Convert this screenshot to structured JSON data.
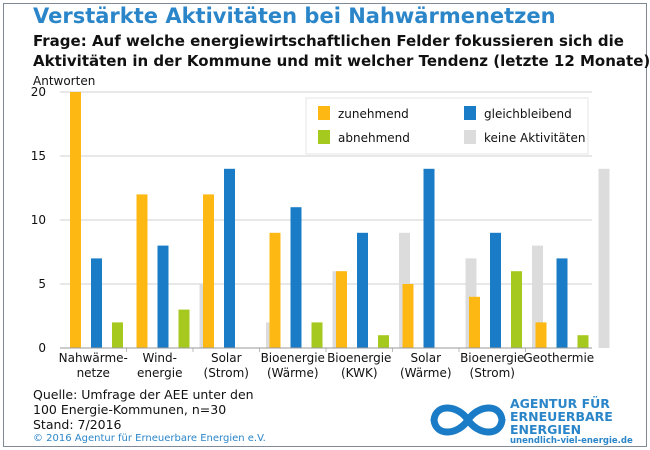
{
  "title": "Verstärkte Aktivitäten bei Nahwärmenetzen",
  "question_line1": "Frage: Auf welche energiewirtschaftlichen Felder fokussieren sich die",
  "question_line2": "Aktivitäten in der Kommune und mit welcher Tendenz (letzte 12 Monate)?",
  "source": {
    "line1": "Quelle: Umfrage der AEE unter den",
    "line2": "100 Energie-Kommunen, n=30",
    "line3": "Stand: 7/2016"
  },
  "copyright": "© 2016 Agentur für Erneuerbare Energien e.V.",
  "logo": {
    "line1": "AGENTUR FÜR",
    "line2": "ERNEUERBARE",
    "line3": "ENERGIEN",
    "url": "unendlich-viel-energie.de"
  },
  "chart_data": {
    "type": "bar",
    "ylabel": "Antworten",
    "ylim": [
      0,
      20
    ],
    "yticks": [
      0,
      5,
      10,
      15,
      20
    ],
    "grid": true,
    "legend_position": "top-right",
    "categories": [
      [
        "Nahwärme-",
        "netze"
      ],
      [
        "Wind-",
        "energie"
      ],
      [
        "Solar",
        "(Strom)"
      ],
      [
        "Bioenergie",
        "(Wärme)"
      ],
      [
        "Bioenergie",
        "(KWK)"
      ],
      [
        "Solar",
        "(Wärme)"
      ],
      [
        "Bioenergie",
        "(Strom)"
      ],
      [
        "Geothermie"
      ]
    ],
    "series": [
      {
        "name": "zunehmend",
        "color": "#fdb813",
        "values": [
          20,
          12,
          12,
          9,
          6,
          5,
          4,
          2
        ]
      },
      {
        "name": "gleichbleibend",
        "color": "#1a7cc6",
        "values": [
          7,
          8,
          14,
          11,
          9,
          14,
          9,
          7
        ]
      },
      {
        "name": "abnehmend",
        "color": "#a6c91f",
        "values": [
          2,
          3,
          0,
          2,
          1,
          0,
          6,
          1
        ]
      },
      {
        "name": "keine Aktivitäten",
        "color": "#dcdcdc",
        "values": [
          0,
          5,
          2,
          6,
          9,
          7,
          8,
          14
        ]
      }
    ]
  }
}
